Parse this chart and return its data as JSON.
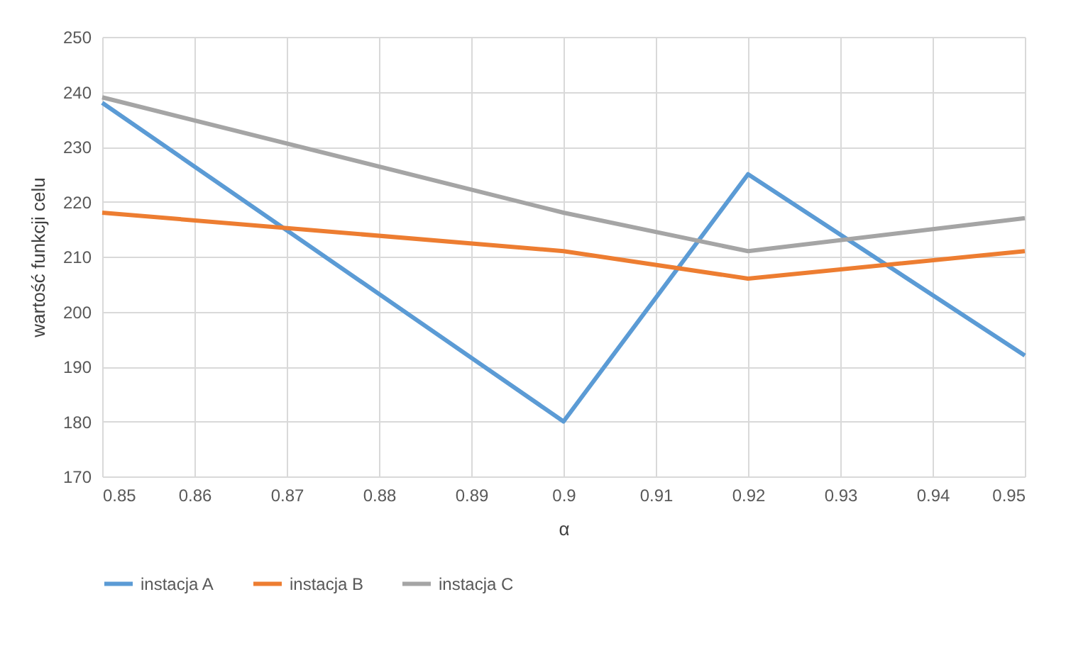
{
  "chart_data": {
    "type": "line",
    "xlabel": "α",
    "ylabel": "wartość funkcji celu",
    "x": [
      0.85,
      0.9,
      0.92,
      0.95
    ],
    "series": [
      {
        "name": "instacja A",
        "color": "#5b9bd5",
        "values": [
          238,
          180,
          225,
          192
        ]
      },
      {
        "name": "instacja B",
        "color": "#ed7d31",
        "values": [
          218,
          211,
          206,
          211
        ]
      },
      {
        "name": "instacja C",
        "color": "#a5a5a5",
        "values": [
          239,
          218,
          211,
          217
        ]
      }
    ],
    "xlim": [
      0.85,
      0.95
    ],
    "xticks": [
      0.85,
      0.86,
      0.87,
      0.88,
      0.89,
      0.9,
      0.91,
      0.92,
      0.93,
      0.94,
      0.95
    ],
    "ylim": [
      170,
      250
    ],
    "yticks": [
      170,
      180,
      190,
      200,
      210,
      220,
      230,
      240,
      250
    ],
    "grid": true,
    "legend": "bottom",
    "marker": "none",
    "line_style": "solid"
  }
}
